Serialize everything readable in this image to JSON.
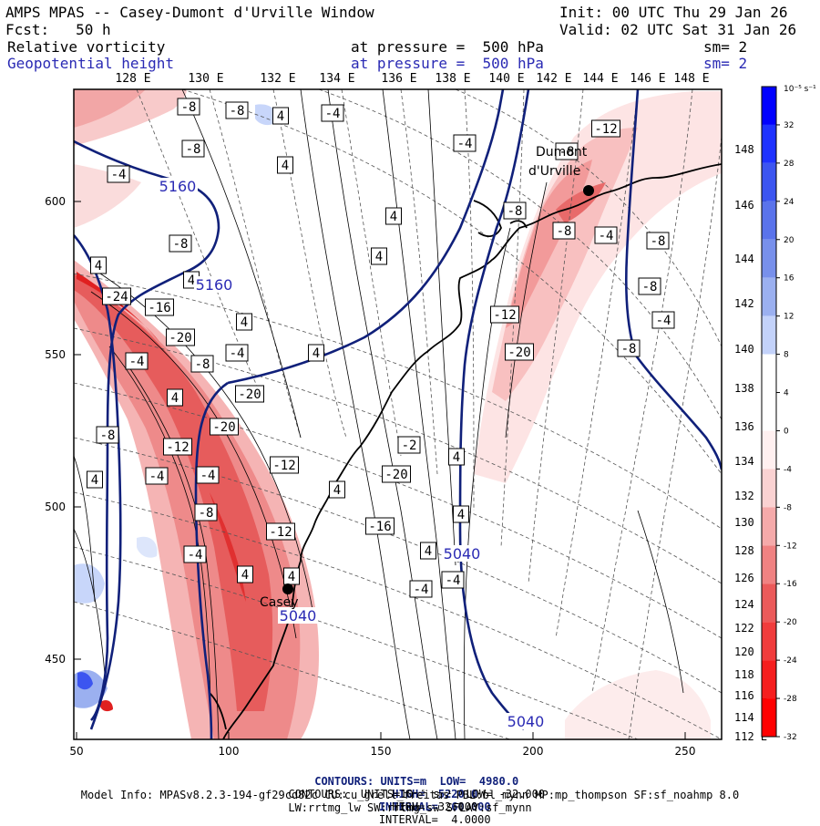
{
  "header": {
    "title": "AMPS MPAS -- Casey-Dumont d'Urville Window",
    "init": "Init: 00 UTC Thu 29 Jan 26",
    "fcst": "Fcst:   50 h",
    "valid": "Valid: 02 UTC Sat 31 Jan 26",
    "field1_name": "Relative vorticity",
    "field1_level": "at pressure =  500 hPa",
    "field1_sm": "sm= 2",
    "field2_name": "Geopotential height",
    "field2_level": "at pressure =  500 hPa",
    "field2_sm": "sm= 2"
  },
  "map": {
    "top_longitude_labels": [
      "128 E",
      "130 E",
      "132 E",
      "134 E",
      "136 E",
      "138 E",
      "140 E",
      "142 E",
      "144 E",
      "146 E",
      "148 E"
    ],
    "right_longitude_labels": [
      "148 E",
      "146 E",
      "144 E",
      "142 E",
      "140 E",
      "138 E",
      "136 E",
      "134 E",
      "132 E",
      "130 E",
      "128 E",
      "126 E",
      "124 E",
      "122 E",
      "120 E",
      "118 E",
      "116 E",
      "114 E",
      "112 E"
    ],
    "x_ticks": [
      "50",
      "100",
      "150",
      "200",
      "250"
    ],
    "y_ticks": [
      "600",
      "550",
      "500",
      "450"
    ],
    "stations": [
      {
        "name": "Casey"
      },
      {
        "name": "Dumont d'Urville"
      }
    ],
    "height_contour_labels": [
      "5160",
      "5160",
      "5040",
      "5040",
      "5040"
    ],
    "vorticity_labels": [
      "-8",
      "-8",
      "4",
      "-4",
      "-8",
      "4",
      "-12",
      "-8",
      "4",
      "-4",
      "-4",
      "-8",
      "4",
      "-8",
      "-8",
      "-8",
      "-4",
      "4",
      "-24",
      "-16",
      "4",
      "-12",
      "-8",
      "4",
      "-4",
      "-20",
      "-4",
      "4",
      "-4",
      "-8",
      "-20",
      "-8",
      "4",
      "-20",
      "-12",
      "-20",
      "-2",
      "4",
      "-12",
      "4",
      "-4",
      "-20",
      "-8",
      "4",
      "-4",
      "-8",
      "4",
      "-16",
      "-12",
      "4",
      "-4",
      "4",
      "4",
      "-4",
      "-4"
    ]
  },
  "colorbar": {
    "unit": "10⁻⁵ s⁻¹",
    "labels": [
      "32",
      "28",
      "24",
      "20",
      "16",
      "12",
      "8",
      "4",
      "0",
      "-4",
      "-8",
      "-12",
      "-16",
      "-20",
      "-24",
      "-28",
      "-32"
    ],
    "colors": [
      "#0000ff",
      "#1e32ff",
      "#3c55f0",
      "#5a73eb",
      "#7890eb",
      "#9bb0f0",
      "#c3d2fa",
      "#ffffff",
      "#ffffff",
      "#fff0f0",
      "#fad2d2",
      "#f5aaaa",
      "#f08282",
      "#eb5a5a",
      "#f03c3c",
      "#f51e1e",
      "#ff0000"
    ]
  },
  "footer": {
    "line1_a": "CONTOURS: UNITS=m  LOW=  4980.0",
    "line1_b": "HIGH=  5220.0",
    "line1_c": "INTERVAL=  60.000",
    "line2_a": "CONTOURS:  UNITS=10⁻⁵ s⁻¹  LOW= -32.000",
    "line2_b": "HIGH=  32.000",
    "line2_c": "INTERVAL=  4.0000",
    "line3": "Model Info: MPASv8.2.3-194-gf29cd82c CU:cu_grell_freitas PBL:bl_mynn MP:mp_thompson SF:sf_noahmp 8.0",
    "line4": "LW:rrtmg_lw SW:rrtmg_sw SFLAY:sf_mynn"
  }
}
